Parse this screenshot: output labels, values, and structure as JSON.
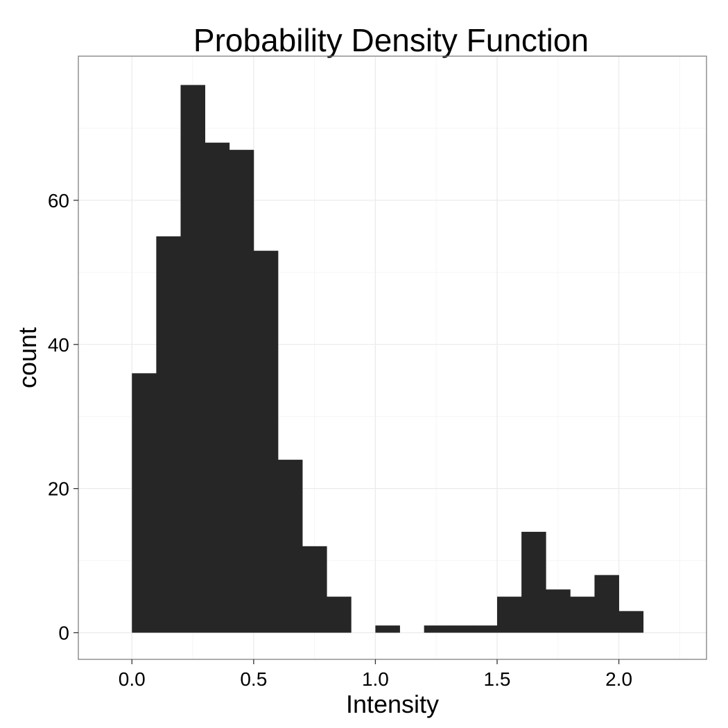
{
  "chart_data": {
    "type": "bar",
    "title": "Probability Density Function",
    "xlabel": "Intensity",
    "ylabel": "count",
    "bin_width": 0.1,
    "bins": [
      {
        "x_start": 0.0,
        "x_end": 0.1,
        "count": 36
      },
      {
        "x_start": 0.1,
        "x_end": 0.2,
        "count": 55
      },
      {
        "x_start": 0.2,
        "x_end": 0.3,
        "count": 76
      },
      {
        "x_start": 0.3,
        "x_end": 0.4,
        "count": 68
      },
      {
        "x_start": 0.4,
        "x_end": 0.5,
        "count": 67
      },
      {
        "x_start": 0.5,
        "x_end": 0.6,
        "count": 53
      },
      {
        "x_start": 0.6,
        "x_end": 0.7,
        "count": 24
      },
      {
        "x_start": 0.7,
        "x_end": 0.8,
        "count": 12
      },
      {
        "x_start": 0.8,
        "x_end": 0.9,
        "count": 5
      },
      {
        "x_start": 0.9,
        "x_end": 1.0,
        "count": 0
      },
      {
        "x_start": 1.0,
        "x_end": 1.1,
        "count": 1
      },
      {
        "x_start": 1.1,
        "x_end": 1.2,
        "count": 0
      },
      {
        "x_start": 1.2,
        "x_end": 1.3,
        "count": 1
      },
      {
        "x_start": 1.3,
        "x_end": 1.4,
        "count": 1
      },
      {
        "x_start": 1.4,
        "x_end": 1.5,
        "count": 1
      },
      {
        "x_start": 1.5,
        "x_end": 1.6,
        "count": 5
      },
      {
        "x_start": 1.6,
        "x_end": 1.7,
        "count": 14
      },
      {
        "x_start": 1.7,
        "x_end": 1.8,
        "count": 6
      },
      {
        "x_start": 1.8,
        "x_end": 1.9,
        "count": 5
      },
      {
        "x_start": 1.9,
        "x_end": 2.0,
        "count": 8
      },
      {
        "x_start": 2.0,
        "x_end": 2.1,
        "count": 3
      }
    ],
    "xlim": [
      -0.22,
      2.36
    ],
    "ylim": [
      -3.7,
      80.0
    ],
    "x_ticks": [
      0.0,
      0.5,
      1.0,
      1.5,
      2.0
    ],
    "x_tick_labels": [
      "0.0",
      "0.5",
      "1.0",
      "1.5",
      "2.0"
    ],
    "y_ticks": [
      0,
      20,
      40,
      60
    ],
    "y_tick_labels": [
      "0",
      "20",
      "40",
      "60"
    ],
    "grid": true,
    "bar_color": "#262626",
    "panel_background": "#ffffff",
    "grid_color": "#ebebeb"
  }
}
